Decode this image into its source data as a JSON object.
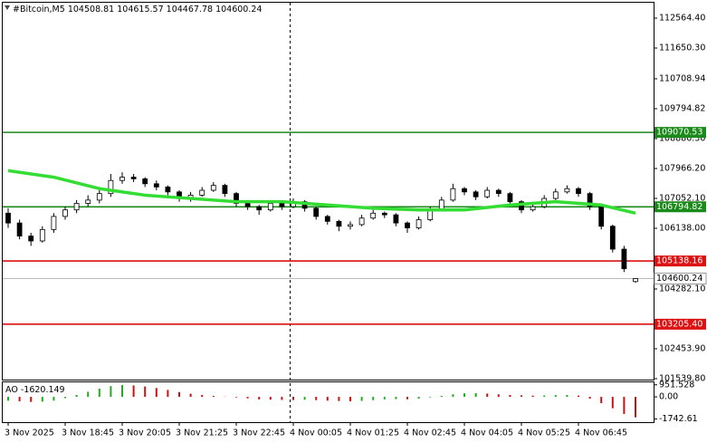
{
  "chart_data": {
    "type": "candlestick",
    "title": "#Bitcoin,M5",
    "categories": [
      "3 Nov 2025",
      null,
      null,
      null,
      null,
      "3 Nov 18:45",
      null,
      null,
      null,
      null,
      "3 Nov 20:05",
      null,
      null,
      null,
      null,
      "3 Nov 21:25",
      null,
      null,
      null,
      null,
      "3 Nov 22:45",
      null,
      null,
      null,
      null,
      "4 Nov 00:05",
      null,
      null,
      null,
      null,
      "4 Nov 01:25",
      null,
      null,
      null,
      null,
      "4 Nov 02:45",
      null,
      null,
      null,
      null,
      "4 Nov 04:05",
      null,
      null,
      null,
      null,
      "4 Nov 05:25",
      null,
      null,
      null,
      null,
      "4 Nov 06:45",
      null,
      null,
      null,
      null,
      null
    ],
    "ohlc": [
      [
        106600,
        106750,
        106150,
        106300
      ],
      [
        106300,
        106400,
        105800,
        105900
      ],
      [
        105900,
        106000,
        105600,
        105750
      ],
      [
        105750,
        106200,
        105700,
        106100
      ],
      [
        106100,
        106600,
        106000,
        106500
      ],
      [
        106500,
        106800,
        106400,
        106700
      ],
      [
        106700,
        107000,
        106600,
        106900
      ],
      [
        106900,
        107150,
        106800,
        107000
      ],
      [
        107000,
        107350,
        106900,
        107200
      ],
      [
        107200,
        107800,
        107100,
        107600
      ],
      [
        107600,
        107850,
        107500,
        107700
      ],
      [
        107700,
        107800,
        107550,
        107650
      ],
      [
        107650,
        107700,
        107400,
        107500
      ],
      [
        107500,
        107600,
        107300,
        107400
      ],
      [
        107400,
        107450,
        107150,
        107250
      ],
      [
        107250,
        107300,
        106950,
        107050
      ],
      [
        107050,
        107250,
        106950,
        107150
      ],
      [
        107150,
        107400,
        107100,
        107300
      ],
      [
        107300,
        107550,
        107250,
        107450
      ],
      [
        107450,
        107500,
        107100,
        107200
      ],
      [
        107200,
        107250,
        106800,
        106900
      ],
      [
        106900,
        107000,
        106700,
        106800
      ],
      [
        106800,
        106850,
        106550,
        106700
      ],
      [
        106700,
        107000,
        106650,
        106900
      ],
      [
        106900,
        106950,
        106700,
        106800
      ],
      [
        106800,
        107050,
        106750,
        106950
      ],
      [
        106950,
        107000,
        106650,
        106750
      ],
      [
        106750,
        106800,
        106400,
        106500
      ],
      [
        106500,
        106550,
        106250,
        106350
      ],
      [
        106350,
        106400,
        106050,
        106200
      ],
      [
        106200,
        106350,
        106100,
        106250
      ],
      [
        106250,
        106550,
        106200,
        106450
      ],
      [
        106450,
        106700,
        106400,
        106600
      ],
      [
        106600,
        106650,
        106450,
        106550
      ],
      [
        106550,
        106600,
        106200,
        106300
      ],
      [
        106300,
        106350,
        106000,
        106150
      ],
      [
        106150,
        106500,
        106100,
        106400
      ],
      [
        106400,
        106800,
        106350,
        106700
      ],
      [
        106700,
        107100,
        106650,
        107000
      ],
      [
        107000,
        107500,
        106950,
        107350
      ],
      [
        107350,
        107400,
        107150,
        107250
      ],
      [
        107250,
        107300,
        107000,
        107100
      ],
      [
        107100,
        107400,
        107050,
        107300
      ],
      [
        107300,
        107350,
        107100,
        107200
      ],
      [
        107200,
        107250,
        106850,
        106950
      ],
      [
        106950,
        107000,
        106600,
        106700
      ],
      [
        106700,
        106900,
        106650,
        106800
      ],
      [
        106800,
        107150,
        106750,
        107050
      ],
      [
        107050,
        107350,
        107000,
        107250
      ],
      [
        107250,
        107450,
        107200,
        107350
      ],
      [
        107350,
        107400,
        107100,
        107200
      ],
      [
        107200,
        107250,
        106700,
        106800
      ],
      [
        106800,
        106850,
        106100,
        106200
      ],
      [
        106200,
        106250,
        105400,
        105500
      ],
      [
        105500,
        105600,
        104800,
        104900
      ],
      [
        104508.81,
        104615.57,
        104467.78,
        104600.24
      ]
    ],
    "up_color": "#ffffff",
    "down_color": "#000000",
    "ma": {
      "color": "#33dd33",
      "x": [
        0,
        4,
        8,
        12,
        16,
        20,
        24,
        28,
        32,
        36,
        40,
        44,
        48,
        52,
        55
      ],
      "values": [
        107900,
        107700,
        107350,
        107150,
        107050,
        106950,
        106950,
        106850,
        106750,
        106700,
        106700,
        106850,
        106950,
        106850,
        106600
      ]
    },
    "levels": [
      {
        "value": 109070.53,
        "color": "#1a8a1a"
      },
      {
        "value": 106794.82,
        "color": "#1a8a1a"
      },
      {
        "value": 105138.16,
        "color": "#dd1111"
      },
      {
        "value": 103205.4,
        "label": "103205.40",
        "color": "#dd1111"
      }
    ],
    "ylim": [
      101484,
      113035
    ],
    "yticks": [
      {
        "value": 112564.4,
        "label": "112564.40"
      },
      {
        "value": 111650.3,
        "label": "111650.30"
      },
      110708.94,
      109794.82,
      {
        "value": 108880.3,
        "label": "108880.30"
      },
      {
        "value": 107966.2,
        "label": "107966.20"
      },
      {
        "value": 107052.1,
        "label": "107052.10"
      },
      {
        "value": 106138,
        "label": "106138.00"
      },
      {
        "value": 104282.1,
        "label": "104282.10"
      },
      {
        "value": 102453.9,
        "label": "102453.90"
      },
      {
        "value": 101539.8,
        "label": "101539.80"
      }
    ],
    "ao": {
      "name": "AO",
      "up_color": "#22aa22",
      "down_color": "#cc1111",
      "values": [
        -300,
        -350,
        -400,
        -380,
        -300,
        -100,
        150,
        400,
        650,
        850,
        930,
        900,
        820,
        700,
        550,
        380,
        250,
        150,
        80,
        20,
        -50,
        -120,
        -200,
        -220,
        -240,
        -250,
        -230,
        -260,
        -300,
        -330,
        -350,
        -320,
        -260,
        -200,
        -180,
        -190,
        -150,
        -50,
        80,
        200,
        280,
        300,
        260,
        200,
        150,
        120,
        100,
        110,
        140,
        150,
        100,
        -150,
        -500,
        -900,
        -1350,
        -1620.149
      ],
      "ylim": [
        -2000,
        1150
      ],
      "yticks": [
        951.528,
        {
          "value": 0,
          "label": "0.00"
        },
        -1742.61
      ]
    }
  }
}
